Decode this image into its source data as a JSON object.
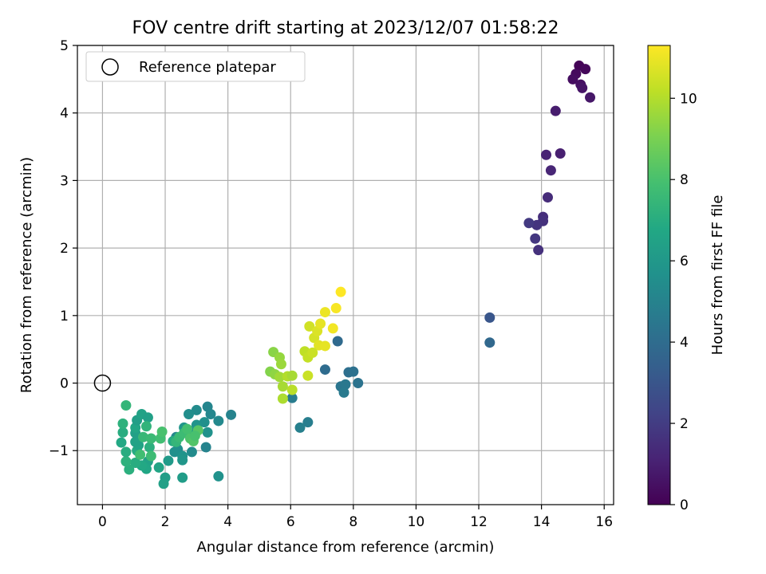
{
  "chart_data": {
    "type": "scatter",
    "title": "FOV centre drift starting at 2023/12/07 01:58:22",
    "xlabel": "Angular distance from reference (arcmin)",
    "ylabel": "Rotation from reference (arcmin)",
    "xlim": [
      -0.8,
      16.3
    ],
    "ylim": [
      -1.8,
      5.0
    ],
    "xticks": [
      0,
      2,
      4,
      6,
      8,
      10,
      12,
      14,
      16
    ],
    "yticks": [
      -1,
      0,
      1,
      2,
      3,
      4,
      5
    ],
    "grid": true,
    "legend": {
      "placement": "top-left",
      "entries": [
        "Reference platepar"
      ]
    },
    "reference_point": {
      "name": "Reference platepar",
      "x": 0,
      "y": 0
    },
    "colorbar": {
      "label": "Hours from first FF file",
      "colormap": "viridis",
      "range": [
        0,
        11.3
      ],
      "ticks": [
        0,
        2,
        4,
        6,
        8,
        10
      ]
    },
    "series": [
      {
        "points": [
          {
            "x": 15.2,
            "y": 4.7,
            "c": 0.1
          },
          {
            "x": 15.4,
            "y": 4.65,
            "c": 0.2
          },
          {
            "x": 15.1,
            "y": 4.58,
            "c": 0.3
          },
          {
            "x": 15.0,
            "y": 4.5,
            "c": 0.4
          },
          {
            "x": 15.25,
            "y": 4.42,
            "c": 0.5
          },
          {
            "x": 15.3,
            "y": 4.37,
            "c": 0.6
          },
          {
            "x": 15.55,
            "y": 4.23,
            "c": 0.7
          },
          {
            "x": 14.45,
            "y": 4.03,
            "c": 0.9
          },
          {
            "x": 14.6,
            "y": 3.4,
            "c": 1.0
          },
          {
            "x": 14.15,
            "y": 3.38,
            "c": 1.1
          },
          {
            "x": 14.3,
            "y": 3.15,
            "c": 1.2
          },
          {
            "x": 14.2,
            "y": 2.75,
            "c": 1.4
          },
          {
            "x": 14.05,
            "y": 2.46,
            "c": 1.5
          },
          {
            "x": 14.05,
            "y": 2.4,
            "c": 1.6
          },
          {
            "x": 13.85,
            "y": 2.34,
            "c": 1.7
          },
          {
            "x": 13.6,
            "y": 2.37,
            "c": 1.9
          },
          {
            "x": 13.8,
            "y": 2.14,
            "c": 1.8
          },
          {
            "x": 13.9,
            "y": 1.97,
            "c": 1.6
          },
          {
            "x": 12.35,
            "y": 0.97,
            "c": 3.0
          },
          {
            "x": 12.35,
            "y": 0.6,
            "c": 3.8
          },
          {
            "x": 7.5,
            "y": 0.62,
            "c": 3.9
          },
          {
            "x": 7.1,
            "y": 0.2,
            "c": 4.0
          },
          {
            "x": 7.85,
            "y": 0.16,
            "c": 4.1
          },
          {
            "x": 8.0,
            "y": 0.17,
            "c": 4.2
          },
          {
            "x": 8.15,
            "y": 0.0,
            "c": 4.3
          },
          {
            "x": 7.6,
            "y": -0.05,
            "c": 4.4
          },
          {
            "x": 7.75,
            "y": -0.02,
            "c": 4.5
          },
          {
            "x": 7.7,
            "y": -0.14,
            "c": 4.6
          },
          {
            "x": 6.05,
            "y": -0.22,
            "c": 4.7
          },
          {
            "x": 6.55,
            "y": -0.58,
            "c": 4.8
          },
          {
            "x": 6.3,
            "y": -0.66,
            "c": 4.9
          },
          {
            "x": 4.1,
            "y": -0.47,
            "c": 5.0
          },
          {
            "x": 3.35,
            "y": -0.35,
            "c": 5.1
          },
          {
            "x": 3.45,
            "y": -0.46,
            "c": 5.2
          },
          {
            "x": 3.7,
            "y": -0.56,
            "c": 5.3
          },
          {
            "x": 3.0,
            "y": -0.4,
            "c": 5.4
          },
          {
            "x": 2.75,
            "y": -0.46,
            "c": 5.5
          },
          {
            "x": 3.25,
            "y": -0.58,
            "c": 5.6
          },
          {
            "x": 3.35,
            "y": -0.73,
            "c": 5.7
          },
          {
            "x": 3.0,
            "y": -0.62,
            "c": 5.8
          },
          {
            "x": 2.6,
            "y": -0.66,
            "c": 5.9
          },
          {
            "x": 2.85,
            "y": -0.72,
            "c": 6.0
          },
          {
            "x": 3.3,
            "y": -0.95,
            "c": 5.0
          },
          {
            "x": 2.35,
            "y": -0.8,
            "c": 5.2
          },
          {
            "x": 2.4,
            "y": -0.98,
            "c": 5.5
          },
          {
            "x": 2.3,
            "y": -1.02,
            "c": 5.6
          },
          {
            "x": 2.85,
            "y": -1.02,
            "c": 5.4
          },
          {
            "x": 2.55,
            "y": -1.08,
            "c": 5.8
          },
          {
            "x": 2.55,
            "y": -1.14,
            "c": 5.9
          },
          {
            "x": 3.7,
            "y": -1.38,
            "c": 5.7
          },
          {
            "x": 2.55,
            "y": -1.4,
            "c": 6.2
          },
          {
            "x": 2.1,
            "y": -1.15,
            "c": 6.1
          },
          {
            "x": 2.0,
            "y": -1.4,
            "c": 6.3
          },
          {
            "x": 1.95,
            "y": -1.49,
            "c": 6.4
          },
          {
            "x": 1.8,
            "y": -1.25,
            "c": 6.6
          },
          {
            "x": 1.45,
            "y": -1.16,
            "c": 6.5
          },
          {
            "x": 1.4,
            "y": -1.27,
            "c": 6.7
          },
          {
            "x": 1.25,
            "y": -1.22,
            "c": 6.8
          },
          {
            "x": 1.05,
            "y": -1.18,
            "c": 7.0
          },
          {
            "x": 0.85,
            "y": -1.28,
            "c": 7.1
          },
          {
            "x": 0.75,
            "y": -1.16,
            "c": 7.2
          },
          {
            "x": 0.75,
            "y": -1.02,
            "c": 7.0
          },
          {
            "x": 1.1,
            "y": -1.0,
            "c": 6.9
          },
          {
            "x": 1.15,
            "y": -0.92,
            "c": 6.6
          },
          {
            "x": 1.05,
            "y": -0.87,
            "c": 6.5
          },
          {
            "x": 0.6,
            "y": -0.88,
            "c": 6.8
          },
          {
            "x": 1.05,
            "y": -0.74,
            "c": 6.4
          },
          {
            "x": 0.65,
            "y": -0.73,
            "c": 7.0
          },
          {
            "x": 1.05,
            "y": -0.66,
            "c": 6.7
          },
          {
            "x": 0.65,
            "y": -0.6,
            "c": 7.2
          },
          {
            "x": 1.1,
            "y": -0.55,
            "c": 6.3
          },
          {
            "x": 1.25,
            "y": -0.46,
            "c": 6.5
          },
          {
            "x": 1.45,
            "y": -0.51,
            "c": 6.4
          },
          {
            "x": 0.75,
            "y": -0.33,
            "c": 7.4
          },
          {
            "x": 1.4,
            "y": -0.64,
            "c": 7.3
          },
          {
            "x": 1.3,
            "y": -0.8,
            "c": 7.5
          },
          {
            "x": 1.5,
            "y": -0.95,
            "c": 7.1
          },
          {
            "x": 1.55,
            "y": -0.82,
            "c": 7.6
          },
          {
            "x": 1.55,
            "y": -1.08,
            "c": 7.7
          },
          {
            "x": 1.2,
            "y": -1.06,
            "c": 7.8
          },
          {
            "x": 1.85,
            "y": -0.82,
            "c": 7.8
          },
          {
            "x": 1.9,
            "y": -0.72,
            "c": 8.0
          },
          {
            "x": 2.25,
            "y": -0.86,
            "c": 6.9
          },
          {
            "x": 2.35,
            "y": -0.87,
            "c": 7.4
          },
          {
            "x": 2.45,
            "y": -0.8,
            "c": 7.6
          },
          {
            "x": 2.6,
            "y": -0.74,
            "c": 7.7
          },
          {
            "x": 2.7,
            "y": -0.68,
            "c": 7.9
          },
          {
            "x": 2.8,
            "y": -0.82,
            "c": 8.1
          },
          {
            "x": 2.9,
            "y": -0.86,
            "c": 8.2
          },
          {
            "x": 3.05,
            "y": -0.7,
            "c": 8.3
          },
          {
            "x": 2.95,
            "y": -0.78,
            "c": 8.0
          },
          {
            "x": 5.35,
            "y": 0.17,
            "c": 9.2
          },
          {
            "x": 5.45,
            "y": 0.46,
            "c": 9.3
          },
          {
            "x": 5.5,
            "y": 0.13,
            "c": 9.4
          },
          {
            "x": 5.65,
            "y": 0.38,
            "c": 9.5
          },
          {
            "x": 5.7,
            "y": 0.28,
            "c": 9.6
          },
          {
            "x": 5.65,
            "y": 0.09,
            "c": 9.7
          },
          {
            "x": 5.75,
            "y": -0.05,
            "c": 9.8
          },
          {
            "x": 5.75,
            "y": -0.23,
            "c": 9.9
          },
          {
            "x": 5.9,
            "y": 0.1,
            "c": 10.0
          },
          {
            "x": 6.05,
            "y": 0.11,
            "c": 9.8
          },
          {
            "x": 6.05,
            "y": -0.1,
            "c": 10.1
          },
          {
            "x": 6.45,
            "y": 0.47,
            "c": 10.2
          },
          {
            "x": 6.55,
            "y": 0.38,
            "c": 10.3
          },
          {
            "x": 6.55,
            "y": 0.11,
            "c": 10.4
          },
          {
            "x": 6.6,
            "y": 0.84,
            "c": 10.5
          },
          {
            "x": 6.75,
            "y": 0.67,
            "c": 10.6
          },
          {
            "x": 6.85,
            "y": 0.77,
            "c": 10.7
          },
          {
            "x": 6.9,
            "y": 0.56,
            "c": 10.8
          },
          {
            "x": 6.95,
            "y": 0.88,
            "c": 10.9
          },
          {
            "x": 7.1,
            "y": 1.05,
            "c": 11.0
          },
          {
            "x": 7.1,
            "y": 0.55,
            "c": 10.9
          },
          {
            "x": 7.35,
            "y": 0.81,
            "c": 11.1
          },
          {
            "x": 7.45,
            "y": 1.11,
            "c": 11.2
          },
          {
            "x": 7.6,
            "y": 1.35,
            "c": 11.3
          },
          {
            "x": 6.7,
            "y": 0.45,
            "c": 10.4
          }
        ]
      }
    ]
  }
}
